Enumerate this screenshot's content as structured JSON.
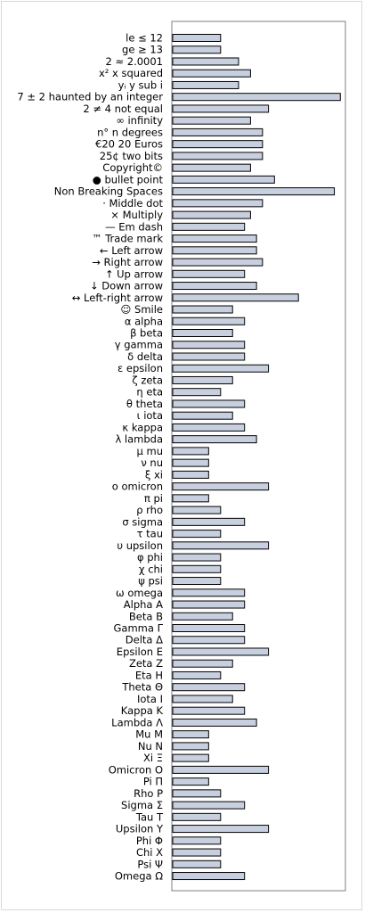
{
  "chart_data": {
    "type": "bar",
    "orientation": "horizontal",
    "title": "",
    "xlabel": "",
    "ylabel": "",
    "xlim": [
      0,
      14.5
    ],
    "grid": false,
    "legend": "none",
    "bar_color": "#c8d0e0",
    "categories": [
      "le ≤ 12",
      "ge ≥ 13",
      "2 ≈ 2.0001",
      "x² x squared",
      "yᵢ y sub i",
      "7 ± 2 haunted by an integer",
      "2 ≠ 4 not equal",
      "∞ infinity",
      "n° n degrees",
      "€20 20 Euros",
      "25¢ two bits",
      "Copyright©",
      "● bullet point",
      "Non  Breaking  Spaces",
      "· Middle dot",
      "× Multiply",
      "— Em dash",
      "™ Trade mark",
      "← Left arrow",
      "→ Right arrow",
      "↑ Up arrow",
      "↓ Down arrow",
      "↔ Left-right arrow",
      "☺ Smile",
      "α alpha",
      "β beta",
      "γ gamma",
      "δ delta",
      "ε epsilon",
      "ζ zeta",
      "η eta",
      "θ theta",
      "ι iota",
      "κ kappa",
      "λ lambda",
      "μ mu",
      "ν nu",
      "ξ xi",
      "ο omicron",
      "π pi",
      "ρ rho",
      "σ sigma",
      "τ tau",
      "υ upsilon",
      "φ phi",
      "χ chi",
      "ψ psi",
      "ω omega",
      "Alpha Α",
      "Beta Β",
      "Gamma Γ",
      "Delta Δ",
      "Epsilon Ε",
      "Zeta Ζ",
      "Eta Η",
      "Theta Θ",
      "Iota Ι",
      "Kappa Κ",
      "Lambda Λ",
      "Mu Μ",
      "Nu Ν",
      "Xi Ξ",
      "Omicron Ο",
      "Pi Π",
      "Rho Ρ",
      "Sigma Σ",
      "Tau Τ",
      "Upsilon Υ",
      "Phi Φ",
      "Chi Χ",
      "Psi Ψ",
      "Omega Ω"
    ],
    "values": [
      4,
      4,
      5.5,
      6.5,
      5.5,
      14,
      8,
      6.5,
      7.5,
      7.5,
      7.5,
      6.5,
      8.5,
      13.5,
      7.5,
      6.5,
      6,
      7,
      7,
      7.5,
      6,
      7,
      10.5,
      5,
      6,
      5,
      6,
      6,
      8,
      5,
      4,
      6,
      5,
      6,
      7,
      3,
      3,
      3,
      8,
      3,
      4,
      6,
      4,
      8,
      4,
      4,
      4,
      6,
      6,
      5,
      6,
      6,
      8,
      5,
      4,
      6,
      5,
      6,
      7,
      3,
      3,
      3,
      8,
      3,
      4,
      6,
      4,
      8,
      4,
      4,
      4,
      6
    ]
  }
}
